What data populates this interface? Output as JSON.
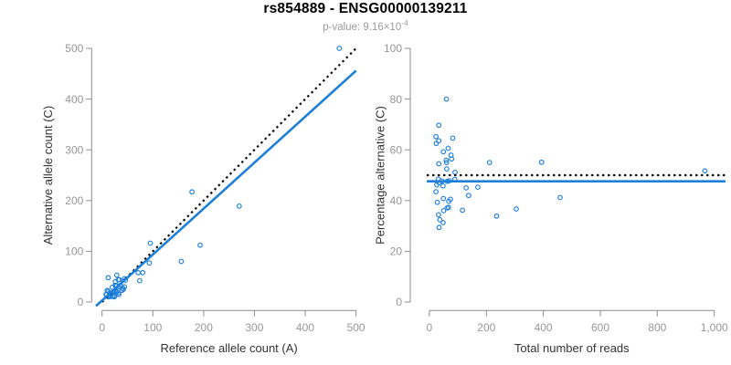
{
  "header": {
    "title": "rs854889 - ENSG00000139211",
    "subtitle_prefix": "p-value: 9.16×10",
    "subtitle_exponent": "-4"
  },
  "colors": {
    "point_blue": "#1E7FDB",
    "line_blue": "#1E7FDB",
    "identity_black": "#000000",
    "axis_gray": "#8C8C8C",
    "tick_label_gray": "#979797",
    "axis_label_dark": "#333333",
    "subtitle_gray": "#9B9B9B",
    "background": "#FFFFFF"
  },
  "chart_data": [
    {
      "type": "scatter",
      "panel": "left",
      "xlabel": "Reference allele count (A)",
      "ylabel": "Alternative allele count (C)",
      "xlim": [
        0,
        500
      ],
      "ylim": [
        0,
        500
      ],
      "grid": false,
      "marker": "open-circle",
      "xticks": {
        "values": [
          0,
          100,
          200,
          300,
          400,
          500
        ],
        "labels": [
          "0",
          "100",
          "200",
          "300",
          "400",
          "500"
        ]
      },
      "yticks": {
        "values": [
          0,
          100,
          200,
          300,
          400,
          500
        ],
        "labels": [
          "0",
          "100",
          "200",
          "300",
          "400",
          "500"
        ]
      },
      "points": [
        [
          12,
          48
        ],
        [
          10,
          23
        ],
        [
          8,
          15
        ],
        [
          9,
          15
        ],
        [
          29,
          53
        ],
        [
          12,
          21
        ],
        [
          26,
          40
        ],
        [
          20,
          29
        ],
        [
          32,
          44
        ],
        [
          34,
          44
        ],
        [
          26,
          33
        ],
        [
          27,
          33
        ],
        [
          15,
          18
        ],
        [
          95,
          116
        ],
        [
          177,
          217
        ],
        [
          29,
          32
        ],
        [
          467,
          500
        ],
        [
          44,
          46
        ],
        [
          33,
          30
        ],
        [
          46,
          43
        ],
        [
          14,
          12
        ],
        [
          26,
          22
        ],
        [
          71,
          58
        ],
        [
          13,
          10
        ],
        [
          80,
          58
        ],
        [
          93,
          77
        ],
        [
          29,
          20
        ],
        [
          44,
          30
        ],
        [
          270,
          189
        ],
        [
          17,
          11
        ],
        [
          41,
          27
        ],
        [
          42,
          25
        ],
        [
          39,
          23
        ],
        [
          193,
          112
        ],
        [
          74,
          42
        ],
        [
          32,
          18
        ],
        [
          21,
          11
        ],
        [
          156,
          80
        ],
        [
          25,
          12
        ],
        [
          33,
          15
        ],
        [
          24,
          10
        ],
        [
          16,
          15
        ],
        [
          23,
          21
        ],
        [
          36,
          33
        ],
        [
          18,
          16
        ]
      ],
      "lines": [
        {
          "name": "identity-line",
          "style": "dotted",
          "color": "#000000",
          "from": [
            0,
            0
          ],
          "to": [
            500,
            500
          ]
        },
        {
          "name": "regression-line",
          "style": "solid",
          "color": "#1E7FDB",
          "from": [
            -12,
            -7.9
          ],
          "to": [
            500,
            456
          ]
        }
      ]
    },
    {
      "type": "scatter",
      "panel": "right",
      "xlabel": "Total number of reads",
      "ylabel": "Percentage alternative (C)",
      "xlim": [
        0,
        1000
      ],
      "ylim": [
        0,
        100
      ],
      "grid": false,
      "marker": "open-circle",
      "xticks": {
        "values": [
          0,
          200,
          400,
          600,
          800,
          1000
        ],
        "labels": [
          "0",
          "200",
          "400",
          "600",
          "800",
          "1,000"
        ]
      },
      "yticks": {
        "values": [
          0,
          20,
          40,
          60,
          80,
          100
        ],
        "labels": [
          "0",
          "20",
          "40",
          "60",
          "80",
          "100"
        ]
      },
      "points": [
        [
          60,
          80
        ],
        [
          33,
          69.7
        ],
        [
          23,
          65.2
        ],
        [
          24,
          62.5
        ],
        [
          82,
          64.6
        ],
        [
          33,
          63.6
        ],
        [
          66,
          60.6
        ],
        [
          49,
          59.2
        ],
        [
          76,
          57.9
        ],
        [
          78,
          56.4
        ],
        [
          59,
          55.9
        ],
        [
          60,
          55
        ],
        [
          33,
          54.5
        ],
        [
          211,
          55
        ],
        [
          394,
          55.1
        ],
        [
          61,
          52.5
        ],
        [
          967,
          51.7
        ],
        [
          90,
          51.1
        ],
        [
          63,
          47.6
        ],
        [
          89,
          48.3
        ],
        [
          26,
          46.2
        ],
        [
          48,
          45.8
        ],
        [
          129,
          45
        ],
        [
          23,
          43.5
        ],
        [
          138,
          42
        ],
        [
          170,
          45.3
        ],
        [
          49,
          40.8
        ],
        [
          74,
          40.5
        ],
        [
          459,
          41.2
        ],
        [
          28,
          39.3
        ],
        [
          68,
          39.7
        ],
        [
          67,
          37.3
        ],
        [
          62,
          37.1
        ],
        [
          305,
          36.7
        ],
        [
          116,
          36.2
        ],
        [
          50,
          36
        ],
        [
          32,
          34.4
        ],
        [
          236,
          33.9
        ],
        [
          37,
          32.4
        ],
        [
          48,
          31.3
        ],
        [
          34,
          29.4
        ],
        [
          31,
          48.4
        ],
        [
          44,
          47.7
        ],
        [
          69,
          47.8
        ],
        [
          34,
          47.1
        ]
      ],
      "lines": [
        {
          "name": "expected-percentage-line",
          "style": "dotted",
          "color": "#000000",
          "from": [
            -9,
            50
          ],
          "to": [
            1039,
            50
          ]
        },
        {
          "name": "mean-percentage-line",
          "style": "solid",
          "color": "#1E7FDB",
          "from": [
            -9,
            47.6
          ],
          "to": [
            1039,
            47.6
          ]
        }
      ]
    }
  ]
}
